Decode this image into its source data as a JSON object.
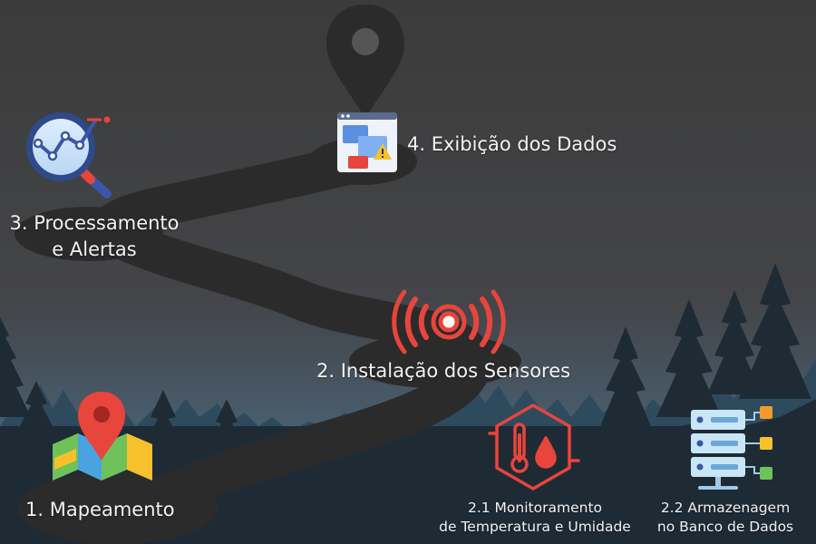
{
  "steps": {
    "step1": {
      "label": "1. Mapeamento"
    },
    "step2": {
      "label": "2. Instalação dos Sensores"
    },
    "step3": {
      "line1": "3. Processamento",
      "line2": "e Alertas"
    },
    "step4": {
      "label": "4. Exibição dos Dados"
    },
    "step2_1": {
      "line1": "2.1 Monitoramento",
      "line2": "de Temperatura e Umidade"
    },
    "step2_2": {
      "line1": "2.2 Armazenagem",
      "line2": "no Banco de Dados"
    }
  },
  "icons": {
    "step1": "map-with-pin-icon",
    "step2": "sensor-signal-icon",
    "step2_1": "thermometer-humidity-icon",
    "step2_2": "database-server-icon",
    "step3": "analytics-magnifier-icon",
    "step4": "dashboard-alert-window-icon",
    "destination": "location-pin-icon"
  },
  "colors": {
    "sky_top": "#3c3c3c",
    "sky_bottom": "#4a4d52",
    "forest_back": "#2f4f63",
    "forest_front": "#1d2a33",
    "road": "#2b2b2b",
    "text": "#f2f2f2",
    "accent_red": "#e8453c"
  }
}
